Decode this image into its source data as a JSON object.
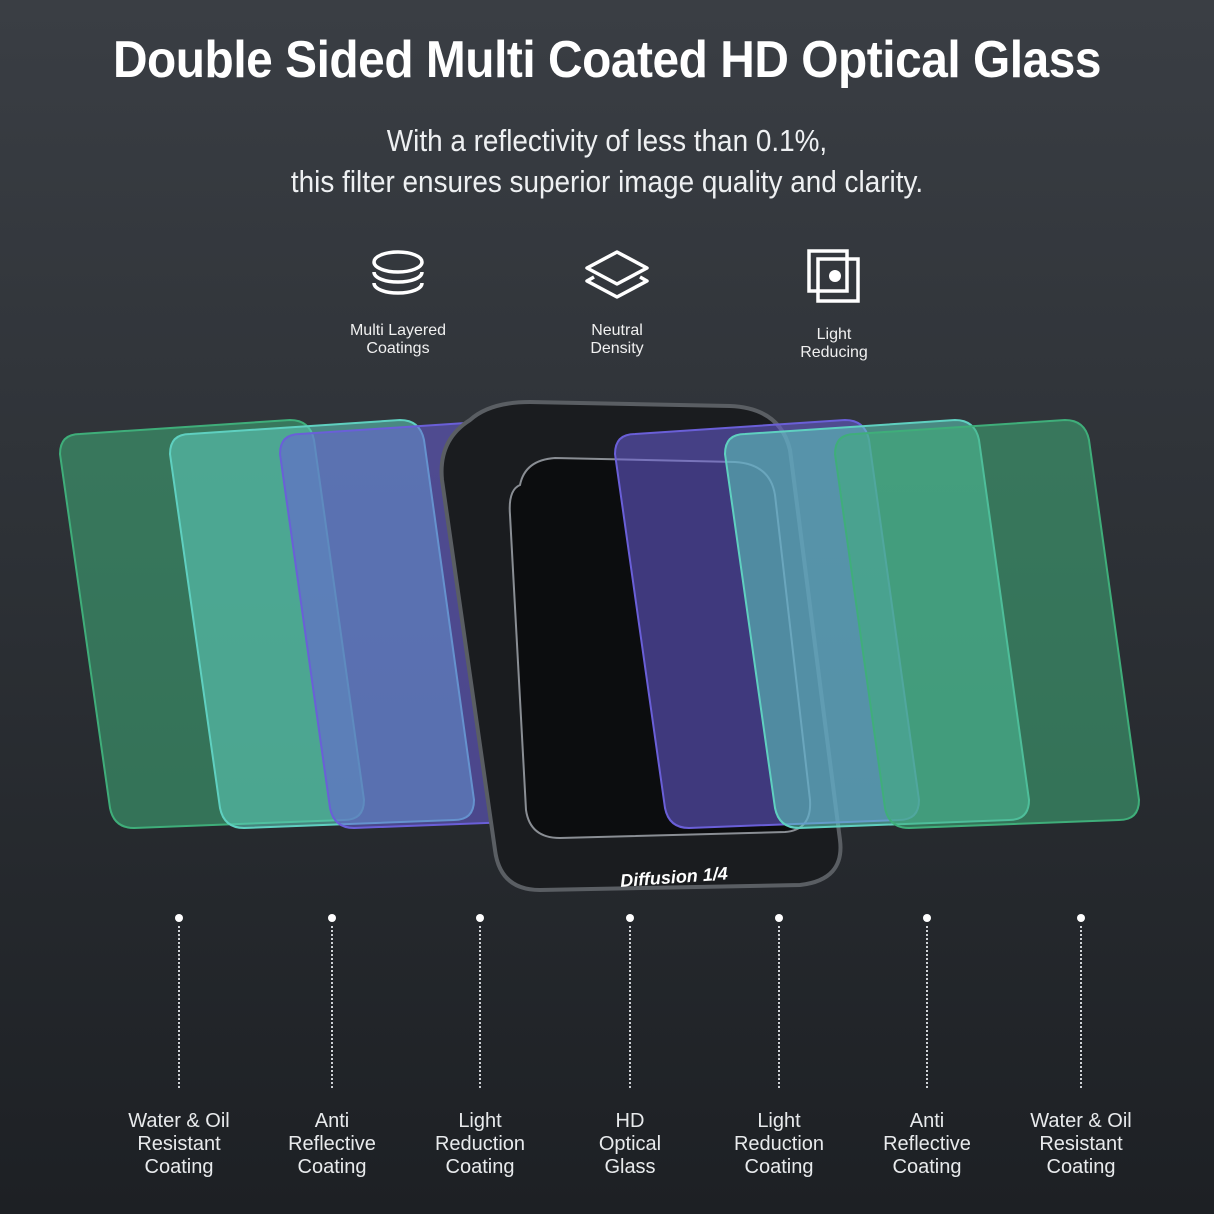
{
  "header": {
    "title": "Double Sided Multi Coated HD Optical Glass",
    "subtitle_line1": "With a reflectivity of less than 0.1%,",
    "subtitle_line2": "this filter ensures superior image quality and clarity."
  },
  "features": [
    {
      "icon": "stacked-discs-icon",
      "line1": "Multi Layered",
      "line2": "Coatings"
    },
    {
      "icon": "layers-icon",
      "line1": "Neutral",
      "line2": "Density"
    },
    {
      "icon": "overlapping-squares-icon",
      "line1": "Light",
      "line2": "Reducing"
    }
  ],
  "filter_label": "Diffusion 1/4",
  "layers": [
    {
      "line1": "Water & Oil",
      "line2": "Resistant",
      "line3": "Coating",
      "color": "#3fae7a"
    },
    {
      "line1": "Anti",
      "line2": "Reflective",
      "line3": "Coating",
      "color": "#5fd0c0"
    },
    {
      "line1": "Light",
      "line2": "Reduction",
      "line3": "Coating",
      "color": "#6a5fd8"
    },
    {
      "line1": "HD",
      "line2": "Optical",
      "line3": "Glass",
      "color": "#111316"
    },
    {
      "line1": "Light",
      "line2": "Reduction",
      "line3": "Coating",
      "color": "#6a5fd8"
    },
    {
      "line1": "Anti",
      "line2": "Reflective",
      "line3": "Coating",
      "color": "#5fd0c0"
    },
    {
      "line1": "Water & Oil",
      "line2": "Resistant",
      "line3": "Coating",
      "color": "#3fae7a"
    }
  ]
}
